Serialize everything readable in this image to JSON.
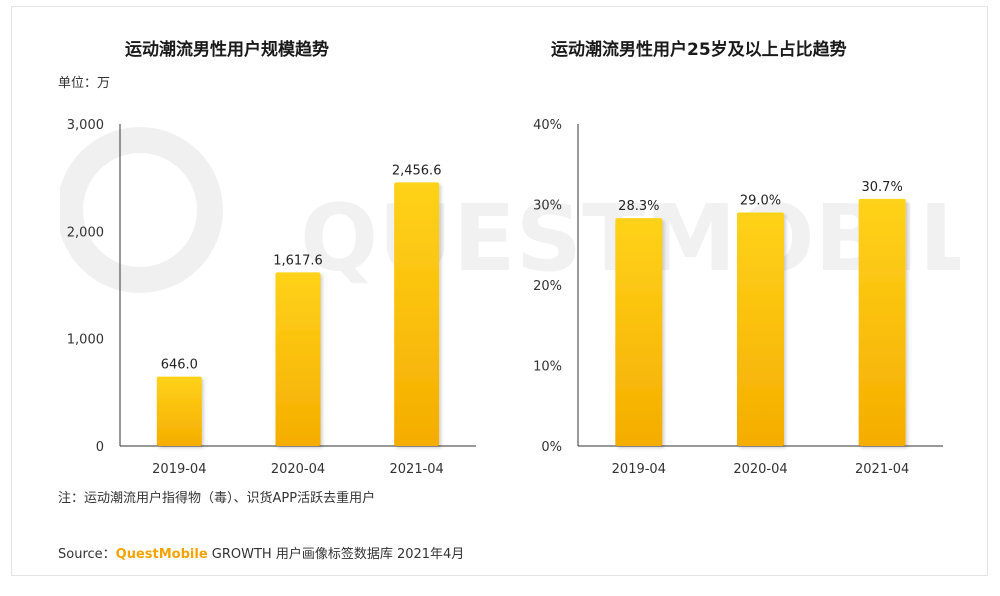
{
  "watermark": {
    "text": "QUESTMOBILE"
  },
  "unit_label": "单位：万",
  "footnote": "注：运动潮流用户指得物（毒）、识货APP活跃去重用户",
  "source": {
    "prefix": "Source：",
    "brand": "QuestMobile",
    "rest": " GROWTH 用户画像标签数据库 2021年4月"
  },
  "colors": {
    "bar_top": "#ffd21a",
    "bar_bottom": "#f5ad00",
    "axis": "#333333"
  },
  "chart_data": [
    {
      "type": "bar",
      "title": "运动潮流男性用户规模趋势",
      "categories": [
        "2019-04",
        "2020-04",
        "2021-04"
      ],
      "values": [
        646.0,
        1617.6,
        2456.6
      ],
      "value_labels": [
        "646.0",
        "1,617.6",
        "2,456.6"
      ],
      "yticks": [
        0,
        1000,
        2000,
        3000
      ],
      "ytick_labels": [
        "0",
        "1,000",
        "2,000",
        "3,000"
      ],
      "ylim": [
        0,
        3000
      ],
      "ylabel": "单位：万",
      "xlabel": "",
      "grid": false
    },
    {
      "type": "bar",
      "title": "运动潮流男性用户25岁及以上占比趋势",
      "categories": [
        "2019-04",
        "2020-04",
        "2021-04"
      ],
      "values": [
        28.3,
        29.0,
        30.7
      ],
      "value_labels": [
        "28.3%",
        "29.0%",
        "30.7%"
      ],
      "yticks": [
        0,
        10,
        20,
        30,
        40
      ],
      "ytick_labels": [
        "0%",
        "10%",
        "20%",
        "30%",
        "40%"
      ],
      "ylim": [
        0,
        40
      ],
      "ylabel": "",
      "xlabel": "",
      "grid": false
    }
  ]
}
